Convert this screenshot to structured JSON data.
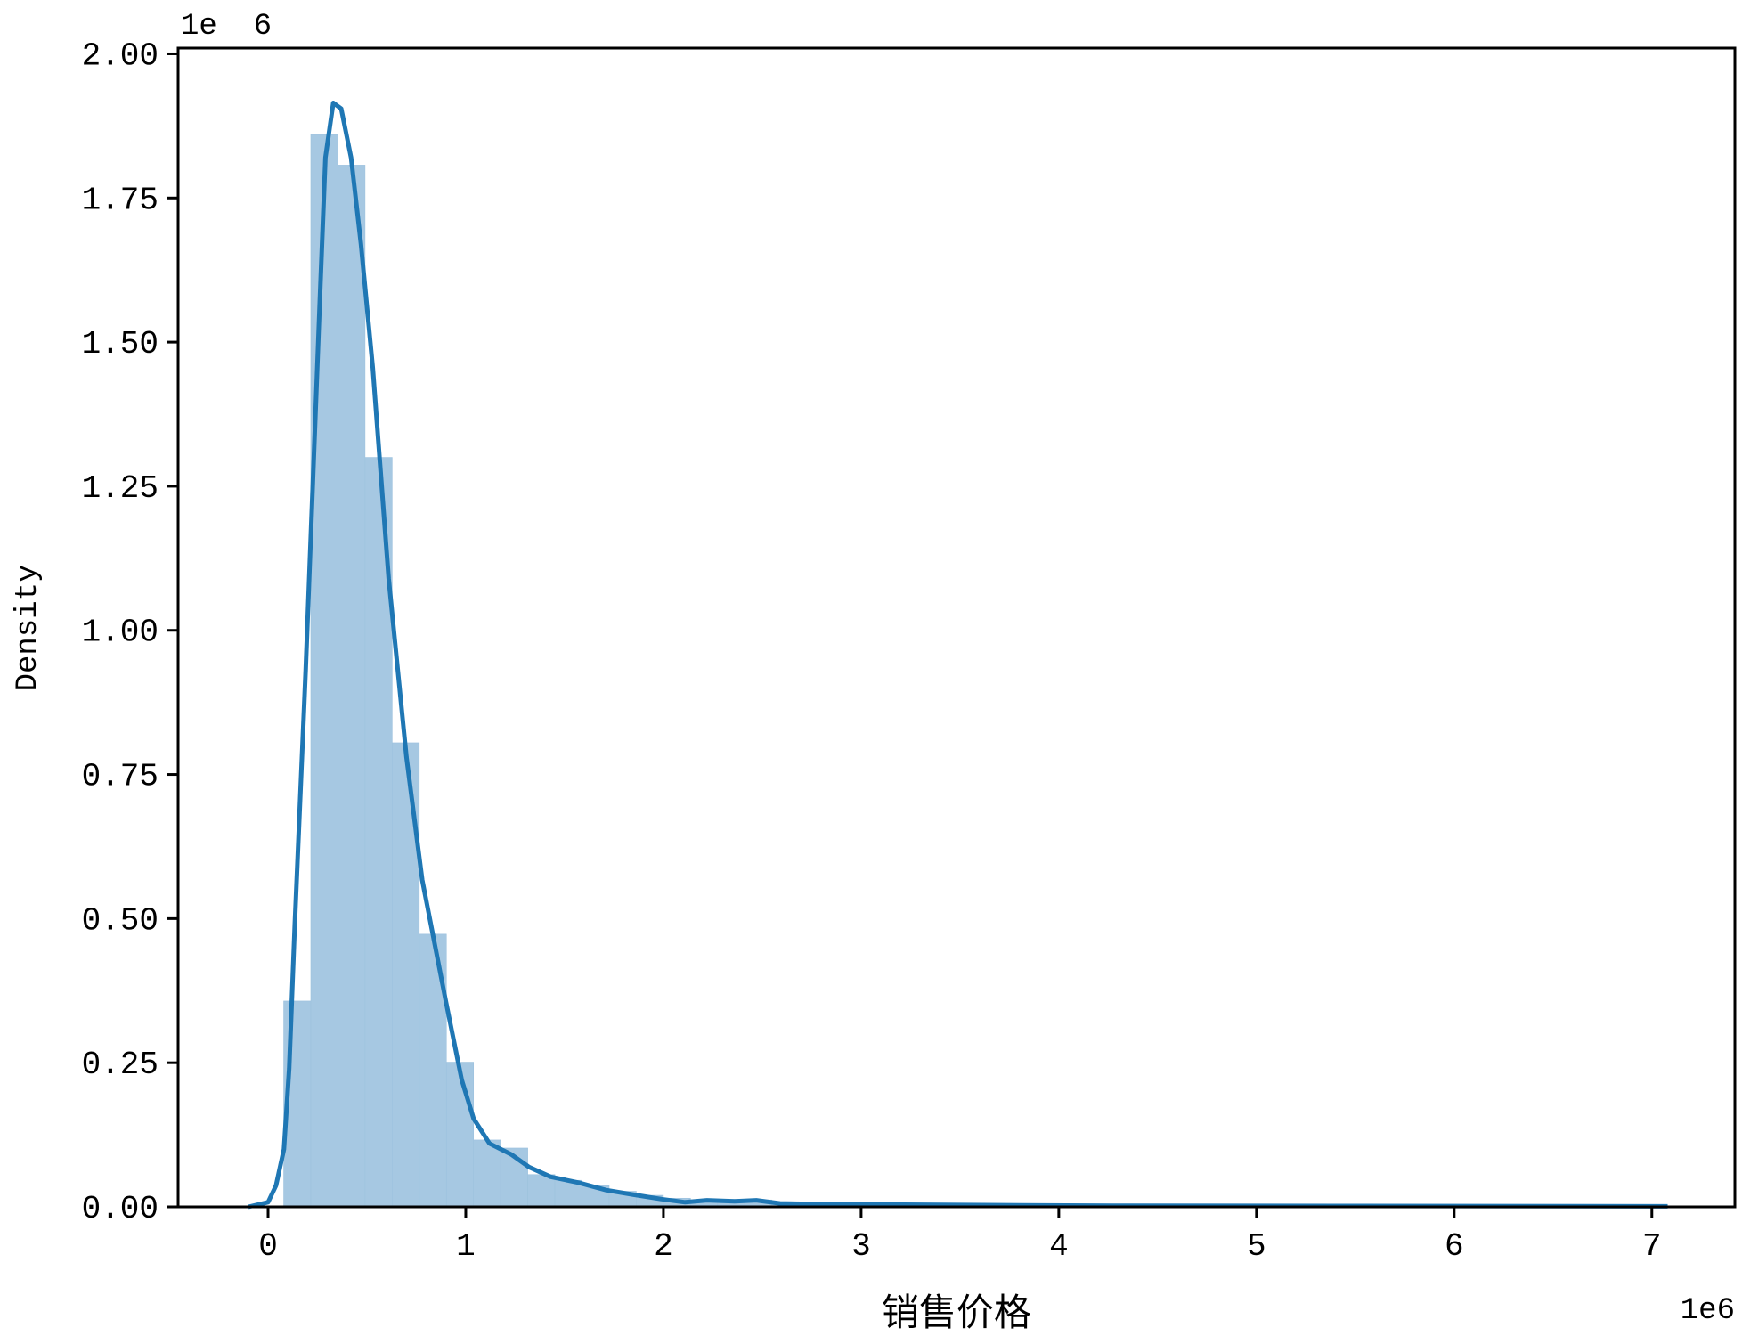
{
  "chart_data": {
    "type": "bar",
    "subtype": "histogram-with-kde",
    "xlabel": "销售价格",
    "ylabel": "Density",
    "x_offset_label": "1e6",
    "y_offset_label": "1e  6",
    "xlim": [
      -0.455,
      7.42
    ],
    "ylim": [
      0,
      2.01
    ],
    "x_ticks": [
      0,
      1,
      2,
      3,
      4,
      5,
      6,
      7
    ],
    "x_tick_labels": [
      "0",
      "1",
      "2",
      "3",
      "4",
      "5",
      "6",
      "7"
    ],
    "y_ticks": [
      0,
      0.25,
      0.5,
      0.75,
      1.0,
      1.25,
      1.5,
      1.75,
      2.0
    ],
    "y_tick_labels": [
      "0.00",
      "0.25",
      "0.50",
      "0.75",
      "1.00",
      "1.25",
      "1.50",
      "1.75",
      "2.00"
    ],
    "grid": false,
    "colors": {
      "bars": "#a6c8e2",
      "kde": "#1f77b4"
    },
    "histogram": {
      "bin_start": 0.079,
      "bin_width": 0.1372,
      "values": [
        0.357,
        1.86,
        1.807,
        1.3,
        0.805,
        0.473,
        0.251,
        0.116,
        0.102,
        0.056,
        0.046,
        0.037,
        0.027,
        0.02,
        0.015,
        0.011,
        0.013,
        0.012,
        0.009,
        0.008,
        0.006,
        0.005,
        0.005,
        0.004,
        0.004,
        0.003,
        0.003,
        0.003,
        0.002,
        0.003,
        0.002,
        0.002,
        0.002,
        0.002,
        0.001,
        0.002,
        0.001,
        0.001,
        0.001,
        0.001,
        0.001,
        0.001,
        0.001,
        0.001,
        0.001,
        0.001,
        0.001,
        0.001,
        0.001,
        0.001,
        0.001
      ]
    },
    "kde": {
      "x": [
        -0.1,
        0,
        0.04,
        0.08,
        0.107,
        0.135,
        0.19,
        0.265,
        0.29,
        0.33,
        0.37,
        0.42,
        0.47,
        0.53,
        0.61,
        0.7,
        0.78,
        0.9,
        0.98,
        1.04,
        1.12,
        1.23,
        1.32,
        1.43,
        1.57,
        1.71,
        1.85,
        1.99,
        2.11,
        2.22,
        2.36,
        2.47,
        2.59,
        2.87,
        3.15,
        3.71,
        4.28,
        5.4,
        7.08
      ],
      "y": [
        0,
        0.008,
        0.037,
        0.1,
        0.24,
        0.49,
        0.93,
        1.6,
        1.82,
        1.915,
        1.905,
        1.82,
        1.67,
        1.455,
        1.09,
        0.78,
        0.567,
        0.355,
        0.22,
        0.153,
        0.11,
        0.091,
        0.069,
        0.052,
        0.042,
        0.029,
        0.021,
        0.0135,
        0.008,
        0.0115,
        0.0096,
        0.0115,
        0.006,
        0.004,
        0.004,
        0.003,
        0.002,
        0.0015,
        0.001
      ]
    }
  }
}
